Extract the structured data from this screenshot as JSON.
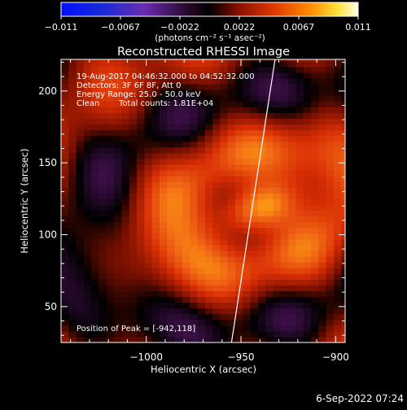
{
  "colorbar": {
    "tick_labels": [
      "−0.011",
      "−0.0067",
      "−0.0022",
      "0.0022",
      "0.0067",
      "0.011"
    ],
    "unit_label": "(photons cm⁻² s⁻¹ asec⁻²)",
    "range": [
      -0.011,
      0.011
    ]
  },
  "chart_data": {
    "type": "heatmap",
    "title": "Reconstructed RHESSI Image",
    "xlabel": "Heliocentric X (arcsec)",
    "ylabel": "Heliocentric Y (arcsec)",
    "xlim": [
      -1045,
      -895
    ],
    "ylim": [
      25,
      222
    ],
    "x_ticks": [
      -1000,
      -950,
      -900
    ],
    "x_tick_labels": [
      "−1000",
      "−950",
      "−900"
    ],
    "y_ticks": [
      50,
      100,
      150,
      200
    ],
    "y_tick_labels": [
      "50",
      "100",
      "150",
      "200"
    ],
    "colormap": "RHESSI color table (blue-purple-black-red-orange-yellow-white)",
    "peak": {
      "x": -942,
      "y": 118
    },
    "annotations": [
      "19-Aug-2017 04:46:32.000 to 04:52:32.000",
      "Detectors: 3F 6F 8F, Att 0",
      "Energy Range: 25.0 - 50.0 keV",
      "Clean",
      "Total counts: 1.81E+04"
    ],
    "peak_text": "Position of Peak = [-942,118]",
    "limb_line": {
      "x": [
        -955,
        -932
      ],
      "y": [
        25,
        222
      ]
    }
  },
  "footer": {
    "date": "6-Sep-2022 07:24"
  },
  "colors": {
    "background": "#000000",
    "text": "#ffffff"
  }
}
